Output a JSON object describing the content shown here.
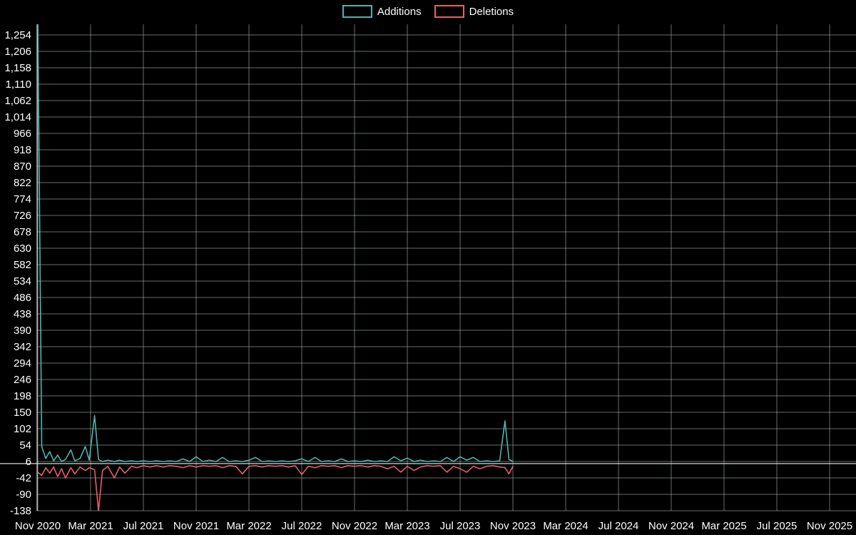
{
  "chart_data": {
    "type": "line",
    "background": "#000000",
    "legend": [
      {
        "label": "Additions",
        "color": "#4fb3af"
      },
      {
        "label": "Deletions",
        "color": "#e85d6f"
      }
    ],
    "style": {
      "grid_color": "#d2d6da",
      "axis_color": "#eceff1",
      "text_color": "#ffffff",
      "grid_opacity": 0.5,
      "line_width": 1.6
    },
    "x_axis": {
      "unit": "months since Nov 2020",
      "range": [
        0,
        60
      ],
      "ticks": [
        {
          "m": 0,
          "label": "Nov 2020"
        },
        {
          "m": 4,
          "label": "Mar 2021"
        },
        {
          "m": 8,
          "label": "Jul 2021"
        },
        {
          "m": 12,
          "label": "Nov 2021"
        },
        {
          "m": 16,
          "label": "Mar 2022"
        },
        {
          "m": 20,
          "label": "Jul 2022"
        },
        {
          "m": 24,
          "label": "Nov 2022"
        },
        {
          "m": 28,
          "label": "Mar 2023"
        },
        {
          "m": 32,
          "label": "Jul 2023"
        },
        {
          "m": 36,
          "label": "Nov 2023"
        },
        {
          "m": 40,
          "label": "Mar 2024"
        },
        {
          "m": 44,
          "label": "Jul 2024"
        },
        {
          "m": 48,
          "label": "Nov 2024"
        },
        {
          "m": 52,
          "label": "Mar 2025"
        },
        {
          "m": 56,
          "label": "Jul 2025"
        },
        {
          "m": 60,
          "label": "Nov 2025"
        }
      ]
    },
    "y_axis": {
      "range": [
        -138,
        1254
      ],
      "grid": true,
      "ticks": [
        -138,
        -90,
        -42,
        6,
        54,
        102,
        150,
        198,
        246,
        294,
        342,
        390,
        438,
        486,
        534,
        582,
        630,
        678,
        726,
        774,
        822,
        870,
        918,
        966,
        1014,
        1062,
        1110,
        1158,
        1206,
        1254
      ]
    },
    "series": [
      {
        "name": "Additions",
        "color": "#4fb3af",
        "points": [
          [
            0,
            1300
          ],
          [
            0.3,
            50
          ],
          [
            0.6,
            15
          ],
          [
            0.9,
            35
          ],
          [
            1.2,
            8
          ],
          [
            1.5,
            25
          ],
          [
            1.8,
            6
          ],
          [
            2.1,
            12
          ],
          [
            2.5,
            40
          ],
          [
            2.8,
            8
          ],
          [
            3.2,
            15
          ],
          [
            3.6,
            50
          ],
          [
            3.9,
            10
          ],
          [
            4.3,
            140
          ],
          [
            4.6,
            12
          ],
          [
            4.9,
            6
          ],
          [
            5.3,
            10
          ],
          [
            5.8,
            6
          ],
          [
            6.2,
            10
          ],
          [
            6.6,
            6
          ],
          [
            7.1,
            8
          ],
          [
            7.5,
            6
          ],
          [
            8,
            8
          ],
          [
            8.5,
            6
          ],
          [
            9,
            8
          ],
          [
            9.5,
            6
          ],
          [
            10,
            8
          ],
          [
            10.5,
            6
          ],
          [
            11,
            14
          ],
          [
            11.5,
            6
          ],
          [
            12,
            20
          ],
          [
            12.5,
            6
          ],
          [
            13,
            10
          ],
          [
            13.5,
            6
          ],
          [
            14,
            18
          ],
          [
            14.5,
            6
          ],
          [
            15,
            8
          ],
          [
            15.5,
            6
          ],
          [
            16,
            10
          ],
          [
            16.5,
            18
          ],
          [
            17,
            6
          ],
          [
            17.5,
            8
          ],
          [
            18,
            6
          ],
          [
            18.5,
            8
          ],
          [
            19,
            6
          ],
          [
            19.5,
            8
          ],
          [
            20,
            14
          ],
          [
            20.5,
            6
          ],
          [
            21,
            18
          ],
          [
            21.5,
            6
          ],
          [
            22,
            8
          ],
          [
            22.5,
            6
          ],
          [
            23,
            14
          ],
          [
            23.5,
            6
          ],
          [
            24,
            8
          ],
          [
            24.5,
            6
          ],
          [
            25,
            10
          ],
          [
            25.5,
            6
          ],
          [
            26,
            8
          ],
          [
            26.5,
            6
          ],
          [
            27,
            20
          ],
          [
            27.5,
            8
          ],
          [
            28,
            16
          ],
          [
            28.5,
            6
          ],
          [
            29,
            10
          ],
          [
            29.5,
            6
          ],
          [
            30,
            8
          ],
          [
            30.5,
            6
          ],
          [
            31,
            18
          ],
          [
            31.5,
            6
          ],
          [
            32,
            20
          ],
          [
            32.5,
            10
          ],
          [
            33,
            18
          ],
          [
            33.5,
            6
          ],
          [
            34,
            8
          ],
          [
            34.5,
            6
          ],
          [
            35,
            8
          ],
          [
            35.4,
            125
          ],
          [
            35.7,
            12
          ],
          [
            36,
            6
          ]
        ]
      },
      {
        "name": "Deletions",
        "color": "#e85d6f",
        "points": [
          [
            0,
            -25
          ],
          [
            0.3,
            -35
          ],
          [
            0.6,
            -12
          ],
          [
            0.9,
            -28
          ],
          [
            1.2,
            -10
          ],
          [
            1.5,
            -38
          ],
          [
            1.8,
            -15
          ],
          [
            2.1,
            -42
          ],
          [
            2.5,
            -12
          ],
          [
            2.8,
            -30
          ],
          [
            3.2,
            -10
          ],
          [
            3.6,
            -20
          ],
          [
            3.9,
            -12
          ],
          [
            4.3,
            -18
          ],
          [
            4.6,
            -138
          ],
          [
            4.9,
            -20
          ],
          [
            5.3,
            -8
          ],
          [
            5.8,
            -42
          ],
          [
            6.2,
            -10
          ],
          [
            6.6,
            -28
          ],
          [
            7.1,
            -8
          ],
          [
            7.5,
            -12
          ],
          [
            8,
            -6
          ],
          [
            8.5,
            -10
          ],
          [
            9,
            -6
          ],
          [
            9.5,
            -10
          ],
          [
            10,
            -6
          ],
          [
            10.5,
            -8
          ],
          [
            11,
            -12
          ],
          [
            11.5,
            -6
          ],
          [
            12,
            -10
          ],
          [
            12.5,
            -6
          ],
          [
            13,
            -8
          ],
          [
            13.5,
            -6
          ],
          [
            14,
            -12
          ],
          [
            14.5,
            -6
          ],
          [
            15,
            -8
          ],
          [
            15.5,
            -30
          ],
          [
            16,
            -8
          ],
          [
            16.5,
            -6
          ],
          [
            17,
            -10
          ],
          [
            17.5,
            -6
          ],
          [
            18,
            -8
          ],
          [
            18.5,
            -6
          ],
          [
            19,
            -10
          ],
          [
            19.5,
            -6
          ],
          [
            20,
            -32
          ],
          [
            20.5,
            -8
          ],
          [
            21,
            -12
          ],
          [
            21.5,
            -6
          ],
          [
            22,
            -8
          ],
          [
            22.5,
            -6
          ],
          [
            23,
            -12
          ],
          [
            23.5,
            -6
          ],
          [
            24,
            -8
          ],
          [
            24.5,
            -6
          ],
          [
            25,
            -10
          ],
          [
            25.5,
            -6
          ],
          [
            26,
            -8
          ],
          [
            26.5,
            -15
          ],
          [
            27,
            -8
          ],
          [
            27.5,
            -25
          ],
          [
            28,
            -8
          ],
          [
            28.5,
            -20
          ],
          [
            29,
            -10
          ],
          [
            29.5,
            -6
          ],
          [
            30,
            -8
          ],
          [
            30.5,
            -6
          ],
          [
            31,
            -25
          ],
          [
            31.5,
            -8
          ],
          [
            32,
            -15
          ],
          [
            32.5,
            -25
          ],
          [
            33,
            -8
          ],
          [
            33.5,
            -15
          ],
          [
            34,
            -8
          ],
          [
            34.5,
            -6
          ],
          [
            35,
            -10
          ],
          [
            35.4,
            -12
          ],
          [
            35.7,
            -30
          ],
          [
            36,
            -8
          ]
        ]
      }
    ]
  }
}
